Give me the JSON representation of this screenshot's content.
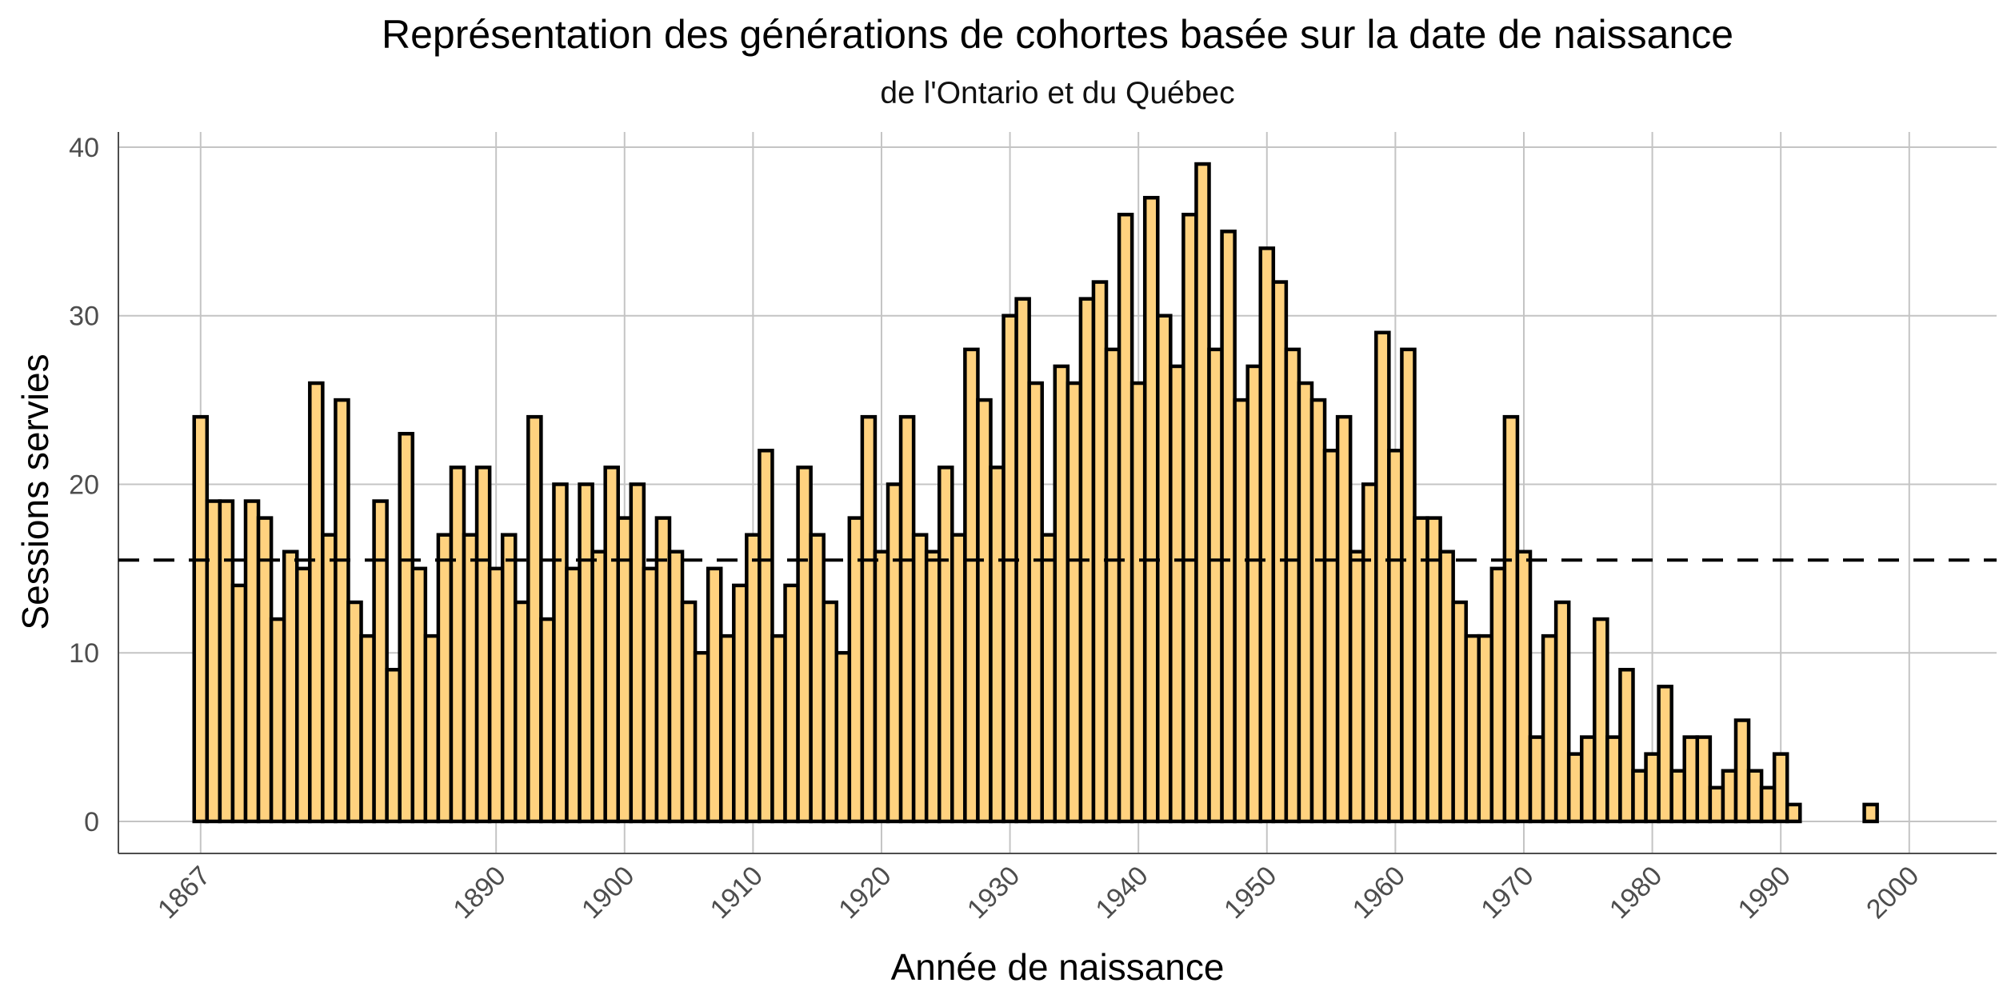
{
  "chart_data": {
    "type": "bar",
    "title": "Représentation des générations de cohortes basée sur la date de naissance",
    "subtitle": "de l'Ontario et du Québec",
    "xlabel": "Année de naissance",
    "ylabel": "Sessions servies",
    "xlim": [
      1860.6,
      2006.8
    ],
    "ylim": [
      -1.9,
      40.9
    ],
    "x_ticks": [
      1867,
      1890,
      1900,
      1910,
      1920,
      1930,
      1940,
      1950,
      1960,
      1970,
      1980,
      1990,
      2000
    ],
    "y_ticks": [
      0,
      10,
      20,
      30,
      40
    ],
    "grid": true,
    "bar_color": "#FFD27F",
    "bar_outline": "#000000",
    "reference_line": {
      "y": 15.5,
      "style": "dashed",
      "color": "#000000"
    },
    "x": [
      1867,
      1868,
      1869,
      1870,
      1871,
      1872,
      1873,
      1874,
      1875,
      1876,
      1877,
      1878,
      1879,
      1880,
      1881,
      1882,
      1883,
      1884,
      1885,
      1886,
      1887,
      1888,
      1889,
      1890,
      1891,
      1892,
      1893,
      1894,
      1895,
      1896,
      1897,
      1898,
      1899,
      1900,
      1901,
      1902,
      1903,
      1904,
      1905,
      1906,
      1907,
      1908,
      1909,
      1910,
      1911,
      1912,
      1913,
      1914,
      1915,
      1916,
      1917,
      1918,
      1919,
      1920,
      1921,
      1922,
      1923,
      1924,
      1925,
      1926,
      1927,
      1928,
      1929,
      1930,
      1931,
      1932,
      1933,
      1934,
      1935,
      1936,
      1937,
      1938,
      1939,
      1940,
      1941,
      1942,
      1943,
      1944,
      1945,
      1946,
      1947,
      1948,
      1949,
      1950,
      1951,
      1952,
      1953,
      1954,
      1955,
      1956,
      1957,
      1958,
      1959,
      1960,
      1961,
      1962,
      1963,
      1964,
      1965,
      1966,
      1967,
      1968,
      1969,
      1970,
      1971,
      1972,
      1973,
      1974,
      1975,
      1976,
      1977,
      1978,
      1979,
      1980,
      1981,
      1982,
      1983,
      1984,
      1985,
      1986,
      1987,
      1988,
      1989,
      1990,
      1991,
      1992,
      1993,
      1994,
      1995,
      1996,
      1997,
      1998
    ],
    "values": [
      24,
      19,
      19,
      14,
      19,
      18,
      12,
      16,
      15,
      26,
      17,
      25,
      13,
      11,
      19,
      9,
      23,
      15,
      11,
      17,
      21,
      17,
      21,
      15,
      17,
      13,
      24,
      12,
      20,
      15,
      20,
      16,
      21,
      18,
      20,
      15,
      18,
      16,
      13,
      10,
      15,
      11,
      14,
      17,
      22,
      11,
      14,
      21,
      17,
      13,
      10,
      18,
      24,
      16,
      20,
      24,
      17,
      16,
      21,
      17,
      28,
      25,
      21,
      30,
      31,
      26,
      17,
      27,
      26,
      31,
      32,
      28,
      36,
      26,
      37,
      30,
      27,
      36,
      39,
      28,
      35,
      25,
      27,
      34,
      32,
      28,
      26,
      25,
      22,
      24,
      16,
      20,
      29,
      22,
      28,
      18,
      18,
      16,
      13,
      11,
      11,
      15,
      24,
      16,
      5,
      11,
      13,
      4,
      5,
      12,
      5,
      9,
      3,
      4,
      8,
      3,
      5,
      5,
      2,
      3,
      6,
      3,
      2,
      4,
      1,
      0,
      0,
      0,
      0,
      0,
      1,
      0
    ]
  }
}
